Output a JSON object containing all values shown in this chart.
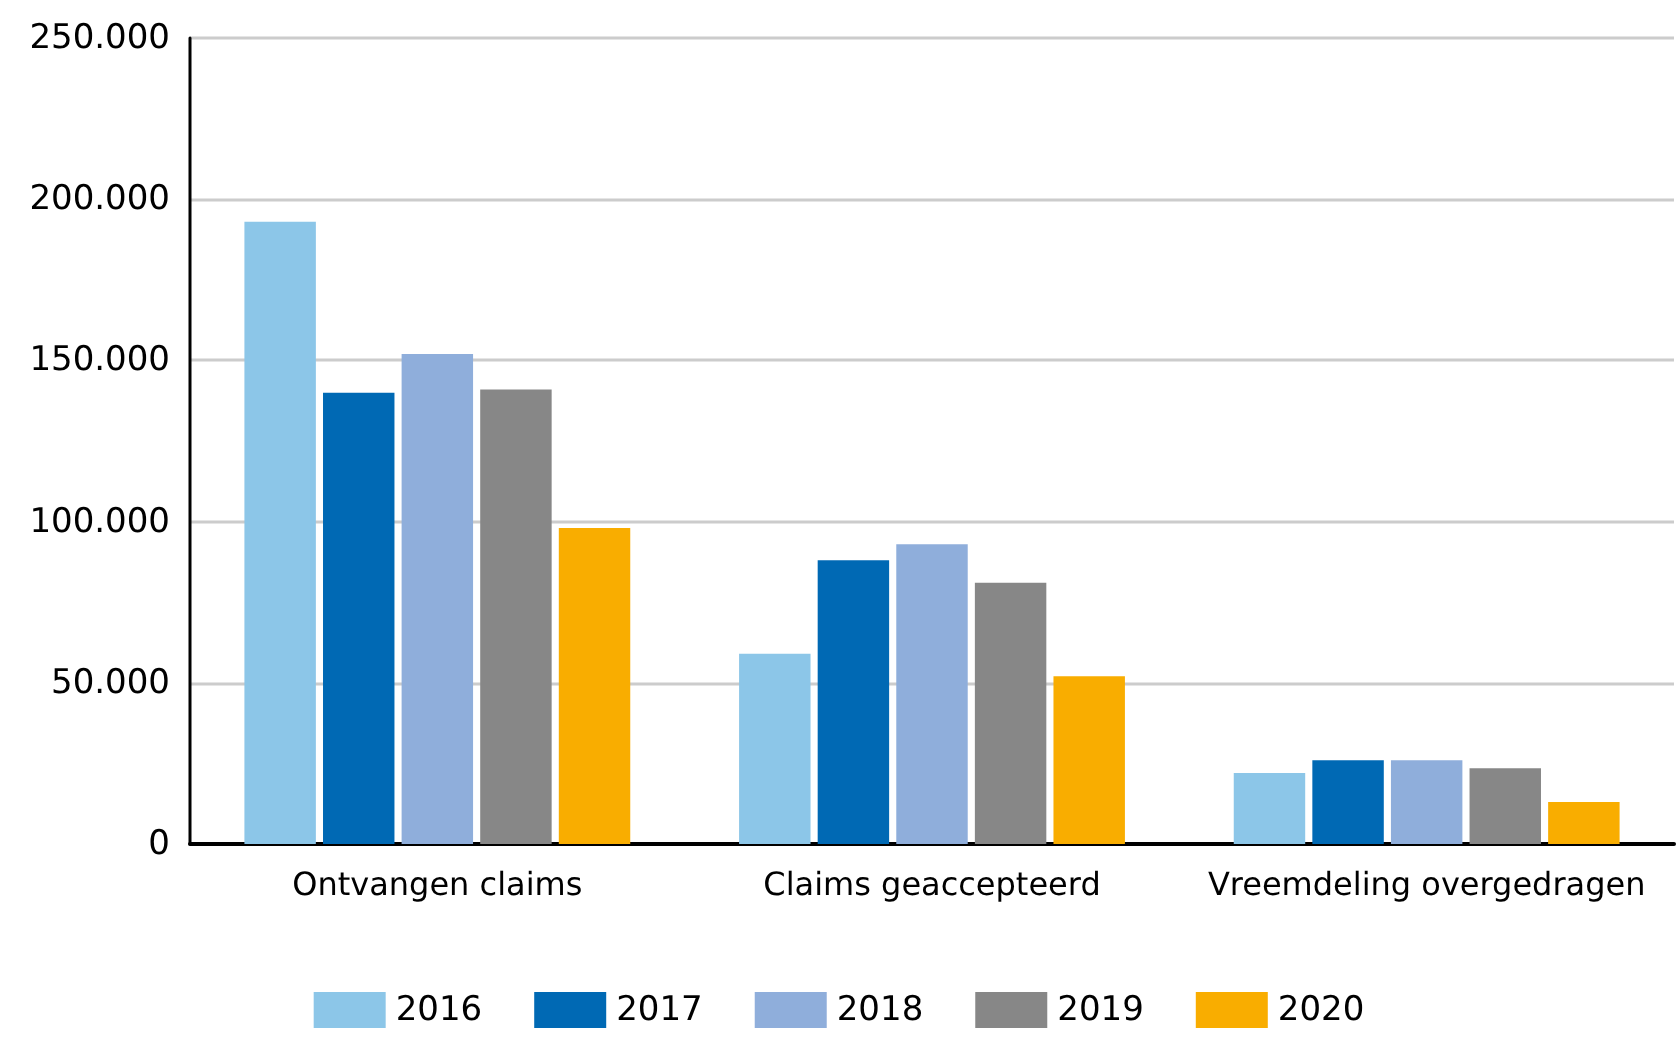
{
  "chart_data": {
    "type": "bar",
    "categories": [
      "Ontvangen claims",
      "Claims geaccepteerd",
      "Vreemdeling overgedragen"
    ],
    "series": [
      {
        "name": "2016",
        "color": "#8cc6e8",
        "values": [
          193000,
          59000,
          22000
        ]
      },
      {
        "name": "2017",
        "color": "#0069b4",
        "values": [
          140000,
          88000,
          26000
        ]
      },
      {
        "name": "2018",
        "color": "#8faedb",
        "values": [
          152000,
          93000,
          26000
        ]
      },
      {
        "name": "2019",
        "color": "#878787",
        "values": [
          141000,
          81000,
          23500
        ]
      },
      {
        "name": "2020",
        "color": "#f9ad00",
        "values": [
          98000,
          52000,
          13000
        ]
      }
    ],
    "ylim": [
      0,
      250000
    ],
    "yticks": [
      {
        "value": 0,
        "label": "0"
      },
      {
        "value": 50000,
        "label": "50.000"
      },
      {
        "value": 100000,
        "label": "100.000"
      },
      {
        "value": 150000,
        "label": "150.000"
      },
      {
        "value": 200000,
        "label": "200.000"
      },
      {
        "value": 250000,
        "label": "250.000"
      }
    ],
    "grid": "y",
    "legend": "bottom"
  }
}
